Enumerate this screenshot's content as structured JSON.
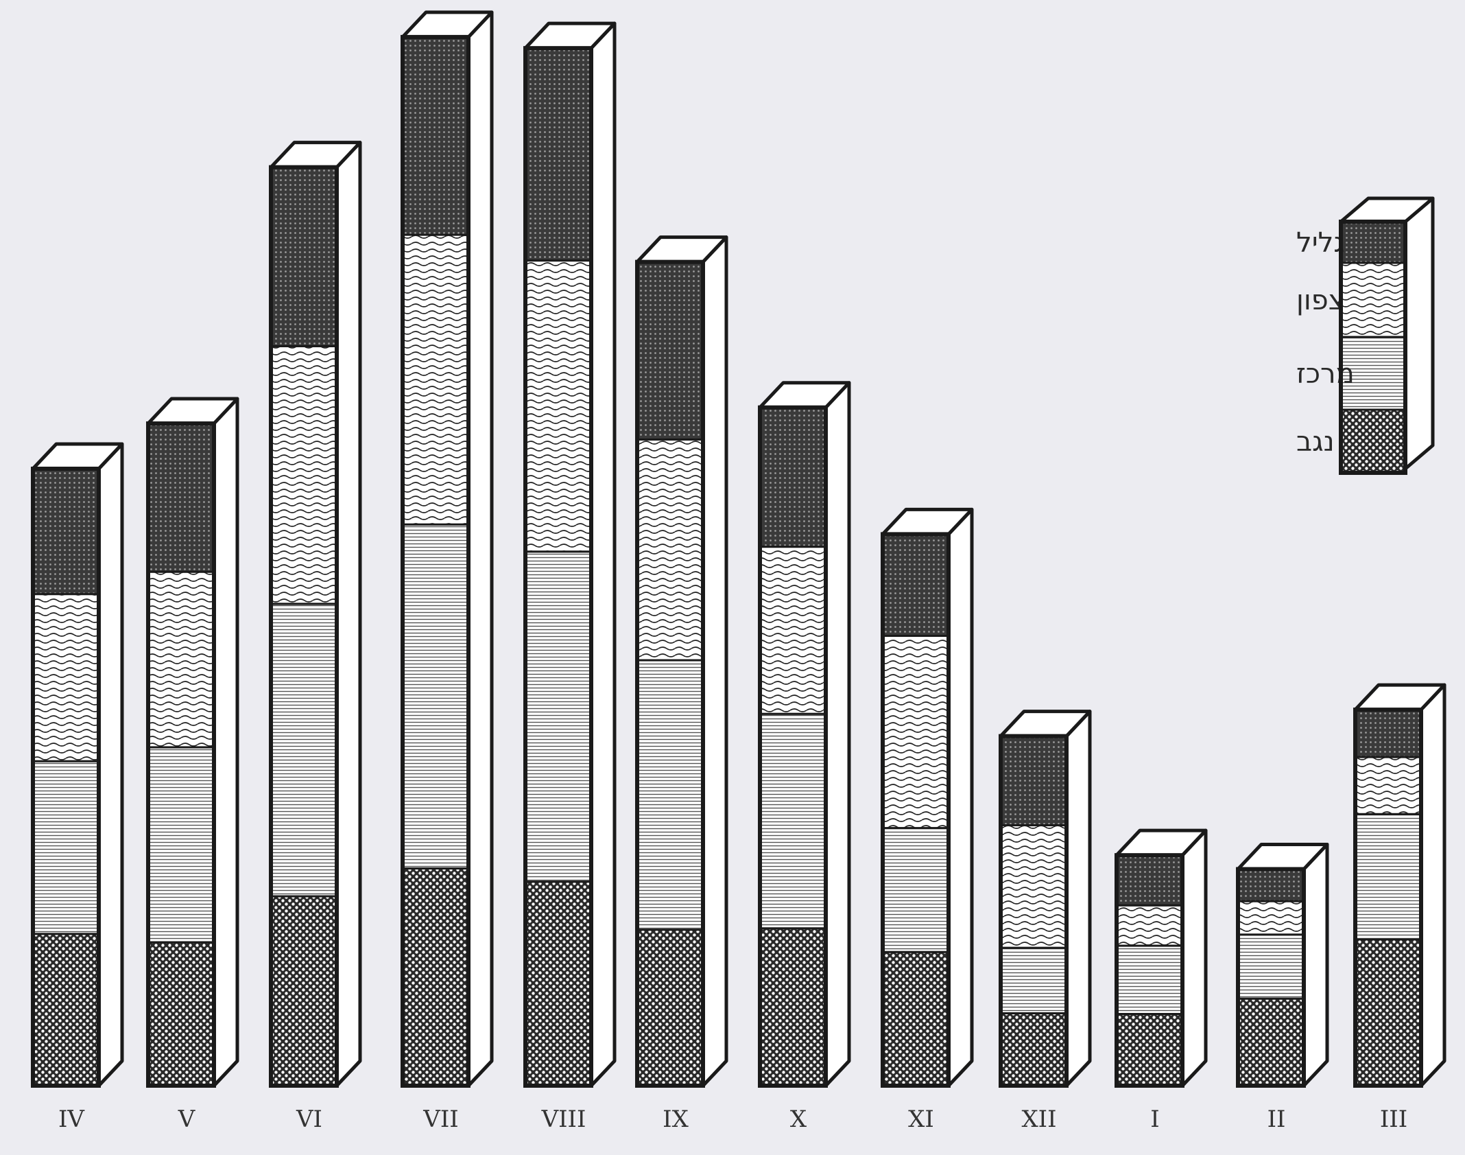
{
  "chart_data": {
    "type": "bar",
    "stacked": true,
    "style": "3d-column",
    "categories": [
      "IV",
      "V",
      "VI",
      "VII",
      "VIII",
      "IX",
      "X",
      "XI",
      "XII",
      "I",
      "II",
      "III"
    ],
    "series": [
      {
        "name": "נגב",
        "pattern": "dots",
        "values": [
          218,
          206,
          272,
          312,
          293,
          224,
          226,
          192,
          104,
          103,
          125,
          210
        ]
      },
      {
        "name": "מרכז",
        "pattern": "horizontal-lines",
        "values": [
          248,
          280,
          420,
          494,
          474,
          387,
          308,
          178,
          94,
          98,
          92,
          180
        ]
      },
      {
        "name": "צפון",
        "pattern": "waves",
        "values": [
          240,
          252,
          370,
          416,
          418,
          317,
          240,
          276,
          176,
          58,
          48,
          82
        ]
      },
      {
        "name": "גליל",
        "pattern": "dark-crosshatch",
        "values": [
          180,
          213,
          257,
          284,
          305,
          255,
          200,
          146,
          128,
          72,
          46,
          68
        ]
      }
    ],
    "ylim": [
      0,
      1500
    ],
    "grid": false,
    "legend_position": "right",
    "colors": {
      "background": "#ececf1",
      "ink": "#1a1a1a",
      "fill": "#ffffff"
    }
  }
}
